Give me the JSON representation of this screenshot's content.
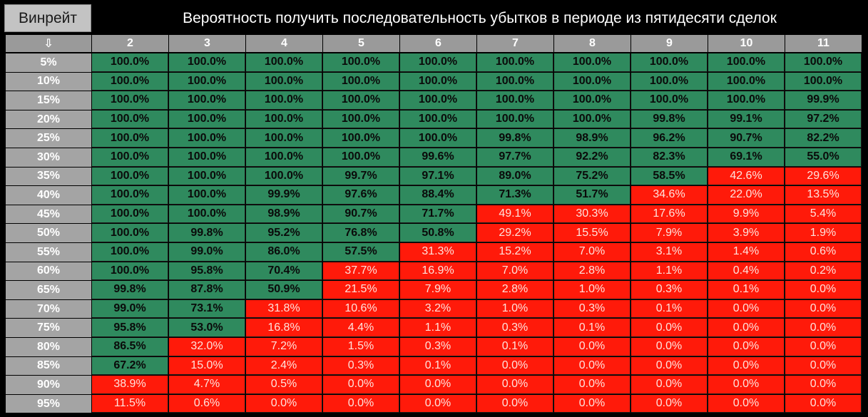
{
  "header": {
    "winrate_button": "Винрейт",
    "title": "Вероятность получить последовательность убытков в периоде из пятидесяти сделок"
  },
  "colors": {
    "green": "#2f8a5e",
    "red": "#ff1a0a",
    "header_gray": "#9a9a9a"
  },
  "chart_data": {
    "type": "table",
    "corner_symbol": "⇩",
    "columns": [
      "2",
      "3",
      "4",
      "5",
      "6",
      "7",
      "8",
      "9",
      "10",
      "11"
    ],
    "rows": [
      {
        "label": "5%",
        "values": [
          "100.0%",
          "100.0%",
          "100.0%",
          "100.0%",
          "100.0%",
          "100.0%",
          "100.0%",
          "100.0%",
          "100.0%",
          "100.0%"
        ]
      },
      {
        "label": "10%",
        "values": [
          "100.0%",
          "100.0%",
          "100.0%",
          "100.0%",
          "100.0%",
          "100.0%",
          "100.0%",
          "100.0%",
          "100.0%",
          "100.0%"
        ]
      },
      {
        "label": "15%",
        "values": [
          "100.0%",
          "100.0%",
          "100.0%",
          "100.0%",
          "100.0%",
          "100.0%",
          "100.0%",
          "100.0%",
          "100.0%",
          "99.9%"
        ]
      },
      {
        "label": "20%",
        "values": [
          "100.0%",
          "100.0%",
          "100.0%",
          "100.0%",
          "100.0%",
          "100.0%",
          "100.0%",
          "99.8%",
          "99.1%",
          "97.2%"
        ]
      },
      {
        "label": "25%",
        "values": [
          "100.0%",
          "100.0%",
          "100.0%",
          "100.0%",
          "100.0%",
          "99.8%",
          "98.9%",
          "96.2%",
          "90.7%",
          "82.2%"
        ]
      },
      {
        "label": "30%",
        "values": [
          "100.0%",
          "100.0%",
          "100.0%",
          "100.0%",
          "99.6%",
          "97.7%",
          "92.2%",
          "82.3%",
          "69.1%",
          "55.0%"
        ]
      },
      {
        "label": "35%",
        "values": [
          "100.0%",
          "100.0%",
          "100.0%",
          "99.7%",
          "97.1%",
          "89.0%",
          "75.2%",
          "58.5%",
          "42.6%",
          "29.6%"
        ]
      },
      {
        "label": "40%",
        "values": [
          "100.0%",
          "100.0%",
          "99.9%",
          "97.6%",
          "88.4%",
          "71.3%",
          "51.7%",
          "34.6%",
          "22.0%",
          "13.5%"
        ]
      },
      {
        "label": "45%",
        "values": [
          "100.0%",
          "100.0%",
          "98.9%",
          "90.7%",
          "71.7%",
          "49.1%",
          "30.3%",
          "17.6%",
          "9.9%",
          "5.4%"
        ]
      },
      {
        "label": "50%",
        "values": [
          "100.0%",
          "99.8%",
          "95.2%",
          "76.8%",
          "50.8%",
          "29.2%",
          "15.5%",
          "7.9%",
          "3.9%",
          "1.9%"
        ]
      },
      {
        "label": "55%",
        "values": [
          "100.0%",
          "99.0%",
          "86.0%",
          "57.5%",
          "31.3%",
          "15.2%",
          "7.0%",
          "3.1%",
          "1.4%",
          "0.6%"
        ]
      },
      {
        "label": "60%",
        "values": [
          "100.0%",
          "95.8%",
          "70.4%",
          "37.7%",
          "16.9%",
          "7.0%",
          "2.8%",
          "1.1%",
          "0.4%",
          "0.2%"
        ]
      },
      {
        "label": "65%",
        "values": [
          "99.8%",
          "87.8%",
          "50.9%",
          "21.5%",
          "7.9%",
          "2.8%",
          "1.0%",
          "0.3%",
          "0.1%",
          "0.0%"
        ]
      },
      {
        "label": "70%",
        "values": [
          "99.0%",
          "73.1%",
          "31.8%",
          "10.6%",
          "3.2%",
          "1.0%",
          "0.3%",
          "0.1%",
          "0.0%",
          "0.0%"
        ]
      },
      {
        "label": "75%",
        "values": [
          "95.8%",
          "53.0%",
          "16.8%",
          "4.4%",
          "1.1%",
          "0.3%",
          "0.1%",
          "0.0%",
          "0.0%",
          "0.0%"
        ]
      },
      {
        "label": "80%",
        "values": [
          "86.5%",
          "32.0%",
          "7.2%",
          "1.5%",
          "0.3%",
          "0.1%",
          "0.0%",
          "0.0%",
          "0.0%",
          "0.0%"
        ]
      },
      {
        "label": "85%",
        "values": [
          "67.2%",
          "15.0%",
          "2.4%",
          "0.3%",
          "0.1%",
          "0.0%",
          "0.0%",
          "0.0%",
          "0.0%",
          "0.0%"
        ]
      },
      {
        "label": "90%",
        "values": [
          "38.9%",
          "4.7%",
          "0.5%",
          "0.0%",
          "0.0%",
          "0.0%",
          "0.0%",
          "0.0%",
          "0.0%",
          "0.0%"
        ]
      },
      {
        "label": "95%",
        "values": [
          "11.5%",
          "0.6%",
          "0.0%",
          "0.0%",
          "0.0%",
          "0.0%",
          "0.0%",
          "0.0%",
          "0.0%",
          "0.0%"
        ]
      }
    ],
    "green_threshold_percent": 50
  }
}
